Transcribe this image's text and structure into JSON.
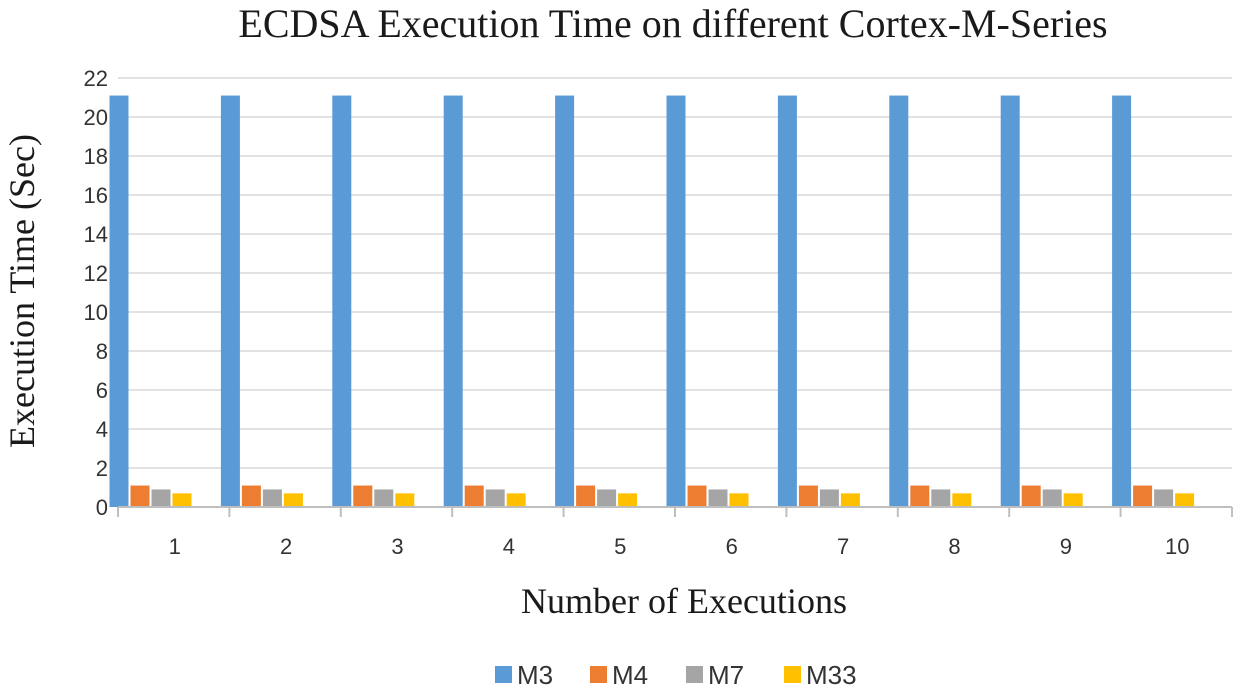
{
  "chart_data": {
    "type": "bar",
    "title": "ECDSA Execution Time on different Cortex-M-Series",
    "xlabel": "Number of Executions",
    "ylabel": "Execution Time (Sec)",
    "categories": [
      "1",
      "2",
      "3",
      "4",
      "5",
      "6",
      "7",
      "8",
      "9",
      "10"
    ],
    "series": [
      {
        "name": "M3",
        "color": "#5b9bd5",
        "values": [
          21.1,
          21.1,
          21.1,
          21.1,
          21.1,
          21.1,
          21.1,
          21.1,
          21.1,
          21.1
        ]
      },
      {
        "name": "M4",
        "color": "#ed7d31",
        "values": [
          1.1,
          1.1,
          1.1,
          1.1,
          1.1,
          1.1,
          1.1,
          1.1,
          1.1,
          1.1
        ]
      },
      {
        "name": "M7",
        "color": "#a5a5a5",
        "values": [
          0.9,
          0.9,
          0.9,
          0.9,
          0.9,
          0.9,
          0.9,
          0.9,
          0.9,
          0.9
        ]
      },
      {
        "name": "M33",
        "color": "#ffc000",
        "values": [
          0.7,
          0.7,
          0.7,
          0.7,
          0.7,
          0.7,
          0.7,
          0.7,
          0.7,
          0.7
        ]
      }
    ],
    "ylim": [
      0,
      22
    ],
    "yticks": [
      0,
      2,
      4,
      6,
      8,
      10,
      12,
      14,
      16,
      18,
      20,
      22
    ],
    "grid": true,
    "legend_position": "bottom"
  }
}
